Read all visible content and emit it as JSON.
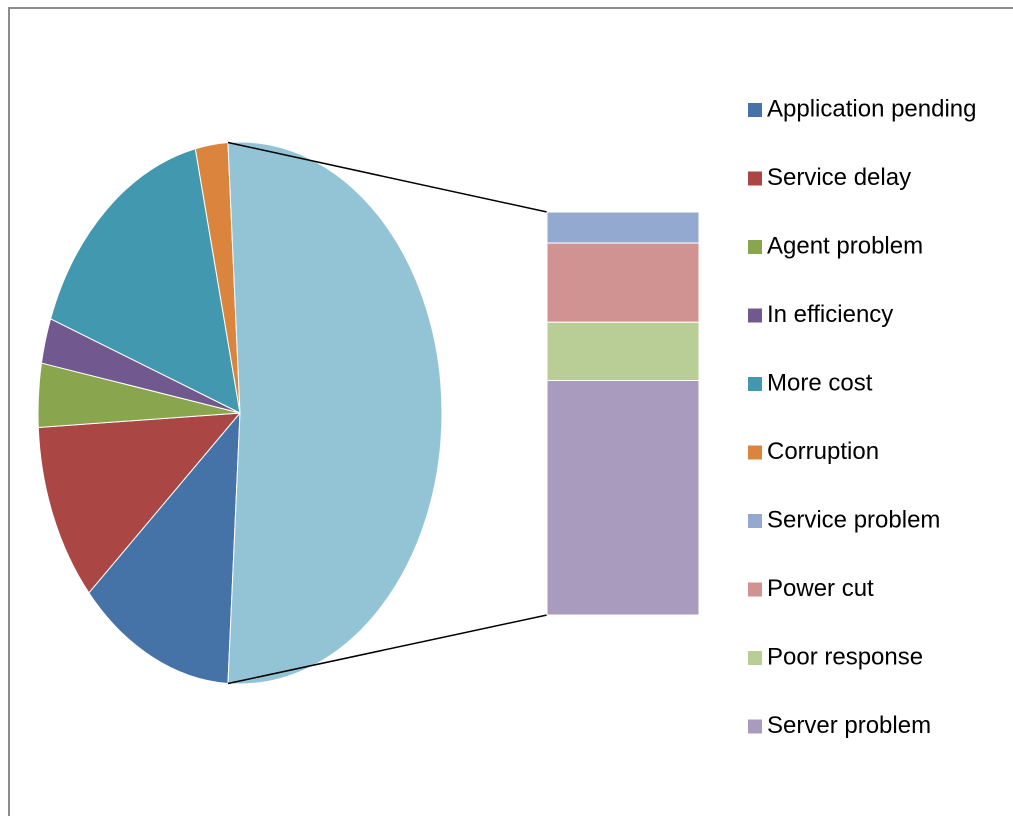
{
  "chart_data": {
    "type": "bar-of-pie",
    "categories": [
      "Application pending",
      "Service delay",
      "Agent problem",
      "In efficiency",
      "More cost",
      "Corruption",
      "Service problem",
      "Power cut",
      "Poor response",
      "Server problem"
    ],
    "values": [
      12.5,
      10.7,
      3.8,
      2.7,
      15.8,
      2.6,
      4.0,
      10.2,
      7.5,
      30.2
    ],
    "colors": [
      "#4572a7",
      "#aa4643",
      "#89a54e",
      "#71588f",
      "#4198af",
      "#db843d",
      "#93a9cf",
      "#d19392",
      "#b9cd96",
      "#a99bbd"
    ],
    "bar_count": 4,
    "other_color": "#93c4d5",
    "legend": "right"
  }
}
